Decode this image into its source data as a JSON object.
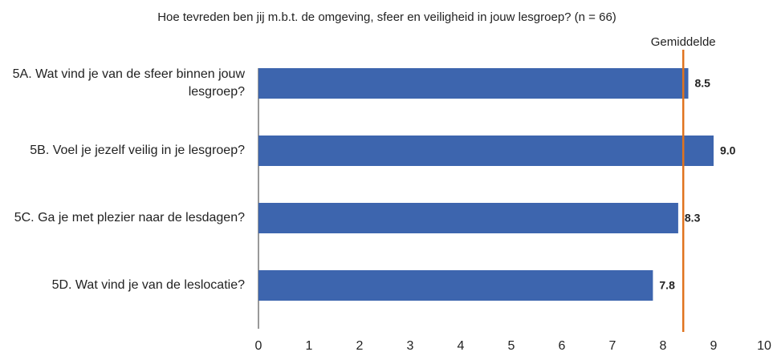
{
  "chart_data": {
    "type": "barh",
    "subtitle": "Hoe tevreden ben jij m.b.t. de omgeving, sfeer en veiligheid in jouw lesgroep? (n = 66)",
    "categories": [
      "5A. Wat vind je van de sfeer binnen jouw lesgroep?",
      "5B. Voel je jezelf veilig in je lesgroep?",
      "5C. Ga je met plezier naar de lesdagen?",
      "5D. Wat vind je van de leslocatie?"
    ],
    "values": [
      8.5,
      9.0,
      8.3,
      7.8
    ],
    "value_labels": [
      "8.5",
      "9.0",
      "8.3",
      "7.8"
    ],
    "color": "#3d65ae",
    "xlim": [
      0,
      10
    ],
    "xticks": [
      0,
      1,
      2,
      3,
      4,
      5,
      6,
      7,
      8,
      9,
      10
    ],
    "grid": false,
    "reference_line": {
      "label": "Gemiddelde",
      "value": 8.4,
      "color": "#e0731e"
    }
  }
}
